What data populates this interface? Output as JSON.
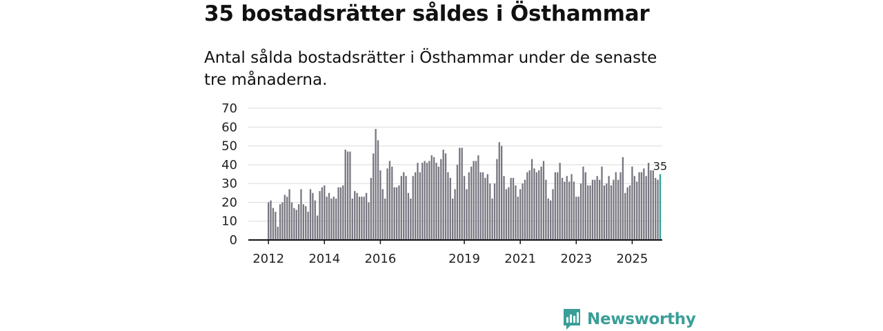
{
  "title": "35 bostadsrätter såldes i Östhammar",
  "subtitle": "Antal sålda bostadsrätter i Östhammar under de senaste tre månaderna.",
  "brand": {
    "name": "Newsworthy",
    "icon": "newsworthy-logo-icon",
    "color": "#3a9e98"
  },
  "chart_data": {
    "type": "bar",
    "title": "35 bostadsrätter såldes i Östhammar",
    "xlabel": "",
    "ylabel": "",
    "ylim": [
      0,
      70
    ],
    "yticks": [
      "0",
      "10",
      "20",
      "30",
      "40",
      "50",
      "60",
      "70"
    ],
    "xticks": [
      {
        "label": "2012",
        "index": 0
      },
      {
        "label": "2014",
        "index": 24
      },
      {
        "label": "2016",
        "index": 48
      },
      {
        "label": "2019",
        "index": 84
      },
      {
        "label": "2021",
        "index": 108
      },
      {
        "label": "2023",
        "index": 132
      },
      {
        "label": "2025",
        "index": 156
      }
    ],
    "grid": true,
    "bar_color": "#77757f",
    "highlight_color": "#2aa198",
    "last_label": "35",
    "values": [
      20,
      21,
      17,
      15,
      7,
      19,
      20,
      24,
      23,
      27,
      20,
      17,
      16,
      19,
      27,
      19,
      18,
      15,
      27,
      25,
      21,
      13,
      26,
      28,
      29,
      23,
      25,
      22,
      23,
      22,
      28,
      28,
      29,
      48,
      47,
      47,
      22,
      26,
      25,
      23,
      23,
      23,
      25,
      20,
      33,
      46,
      59,
      53,
      37,
      27,
      22,
      38,
      42,
      39,
      28,
      28,
      29,
      34,
      36,
      34,
      25,
      22,
      34,
      36,
      41,
      36,
      41,
      42,
      41,
      42,
      45,
      44,
      41,
      39,
      43,
      48,
      46,
      36,
      33,
      22,
      27,
      40,
      49,
      49,
      34,
      27,
      36,
      39,
      42,
      42,
      45,
      36,
      36,
      33,
      35,
      30,
      22,
      30,
      43,
      52,
      50,
      34,
      27,
      28,
      33,
      33,
      29,
      23,
      27,
      30,
      32,
      36,
      37,
      43,
      38,
      36,
      37,
      39,
      42,
      32,
      22,
      21,
      27,
      36,
      36,
      41,
      33,
      31,
      34,
      31,
      35,
      31,
      23,
      23,
      30,
      39,
      36,
      29,
      29,
      32,
      32,
      34,
      32,
      39,
      29,
      30,
      34,
      29,
      32,
      36,
      32,
      36,
      44,
      25,
      28,
      29,
      39,
      34,
      31,
      36,
      36,
      38,
      34,
      41,
      37,
      37,
      33,
      32,
      35
    ]
  }
}
